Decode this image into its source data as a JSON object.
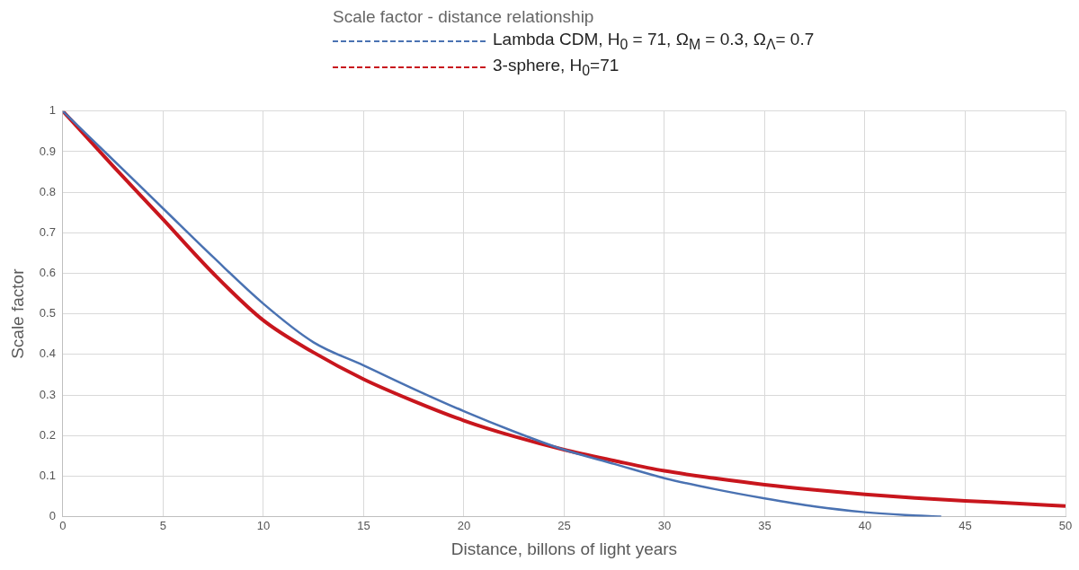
{
  "chart_data": {
    "type": "line",
    "title": "Scale factor - distance relationship",
    "xlabel": "Distance, billons of light years",
    "ylabel": "Scale factor",
    "xlim": [
      0,
      50
    ],
    "xticks": [
      0,
      5,
      10,
      15,
      20,
      25,
      30,
      35,
      40,
      45,
      50
    ],
    "ylim": [
      0,
      1
    ],
    "yticks": [
      0,
      0.1,
      0.2,
      0.3,
      0.4,
      0.5,
      0.6,
      0.7,
      0.8,
      0.9,
      1
    ],
    "grid": true,
    "legend": "top",
    "marker": "none",
    "line_style": "solid",
    "series": [
      {
        "name": "Lambda CDM, H$_{0}$ = 71, Ω$_{M}$ = 0.3, Ω$_{Λ}$= 0.7",
        "color": "#4a72b2",
        "x": [
          0,
          2.5,
          5,
          7.5,
          10,
          12.5,
          15,
          17.5,
          20,
          22.5,
          25,
          27.5,
          30,
          32.5,
          35,
          37.5,
          40,
          42,
          43.8
        ],
        "values": [
          1,
          0.88,
          0.76,
          0.64,
          0.525,
          0.43,
          0.373,
          0.315,
          0.26,
          0.21,
          0.165,
          0.13,
          0.095,
          0.068,
          0.045,
          0.025,
          0.011,
          0.004,
          0
        ]
      },
      {
        "name": "3-sphere, H$_{0}$=71",
        "color": "#c8161d",
        "x": [
          0,
          2.5,
          5,
          7.5,
          10,
          12.5,
          15,
          17.5,
          20,
          22.5,
          25,
          27.5,
          30,
          32.5,
          35,
          37.5,
          40,
          42.5,
          45,
          47.5,
          50
        ],
        "values": [
          1,
          0.865,
          0.733,
          0.6,
          0.484,
          0.405,
          0.339,
          0.285,
          0.237,
          0.198,
          0.165,
          0.138,
          0.113,
          0.095,
          0.079,
          0.066,
          0.055,
          0.046,
          0.039,
          0.033,
          0.026
        ]
      }
    ]
  }
}
